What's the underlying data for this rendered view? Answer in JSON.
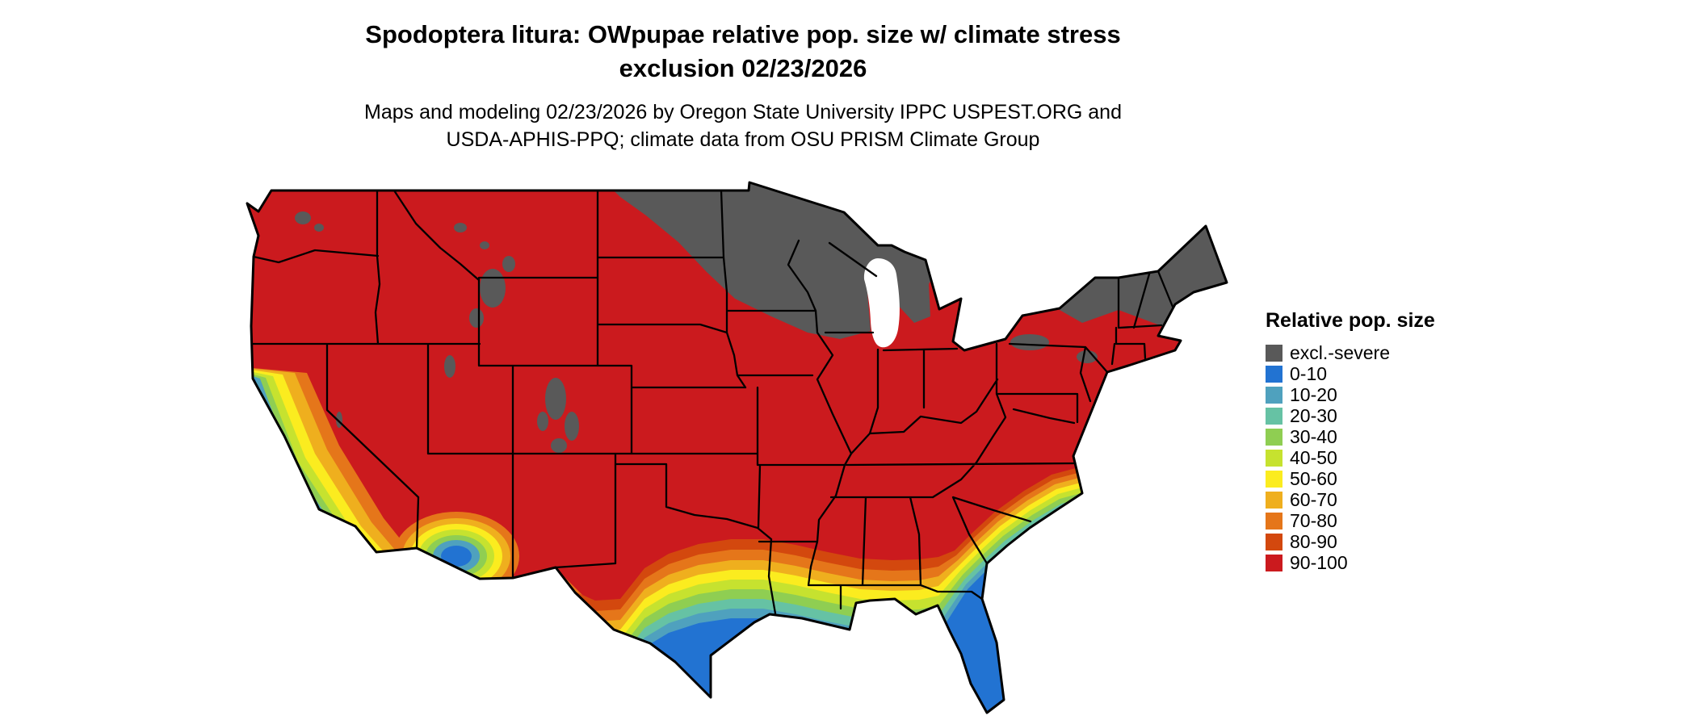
{
  "title": {
    "line1": "Spodoptera litura: OWpupae relative pop. size w/ climate stress",
    "line2": "exclusion 02/23/2026"
  },
  "subtitle": {
    "line1": "Maps and modeling 02/23/2026 by Oregon State University IPPC USPEST.ORG and",
    "line2": "USDA-APHIS-PPQ; climate data from OSU PRISM Climate Group"
  },
  "legend": {
    "title": "Relative pop. size",
    "items": [
      {
        "label": "excl.-severe",
        "color": "#595959"
      },
      {
        "label": "0-10",
        "color": "#2273D2"
      },
      {
        "label": "10-20",
        "color": "#4FA1BE"
      },
      {
        "label": "20-30",
        "color": "#66C2A4"
      },
      {
        "label": "30-40",
        "color": "#8FCE52"
      },
      {
        "label": "40-50",
        "color": "#C6E22F"
      },
      {
        "label": "50-60",
        "color": "#FBEC1F"
      },
      {
        "label": "60-70",
        "color": "#EFAF1E"
      },
      {
        "label": "70-80",
        "color": "#E5761A"
      },
      {
        "label": "80-90",
        "color": "#D3480E"
      },
      {
        "label": "90-100",
        "color": "#CB1A1E"
      }
    ]
  },
  "map": {
    "outline_color": "#000000",
    "water_color": "#FFFFFF"
  }
}
